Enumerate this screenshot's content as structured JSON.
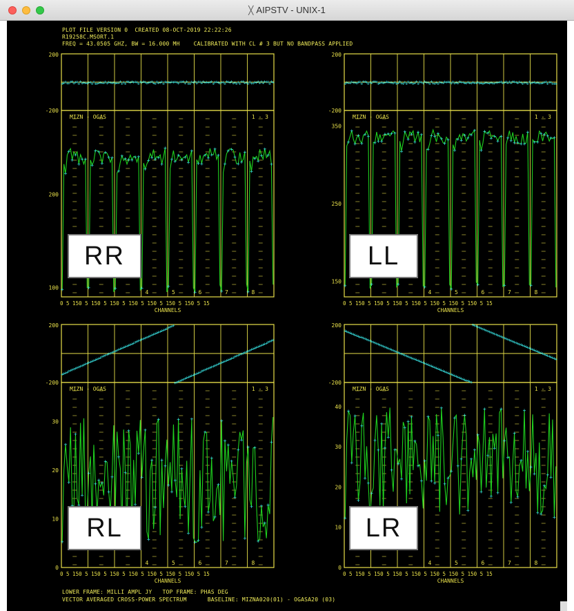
{
  "window": {
    "title": "AIPSTV - UNIX-1"
  },
  "header": {
    "line1": "PLOT FILE VERSION 0  CREATED 08-OCT-2019 22:22:26",
    "line2": "R19258C.MSORT.1",
    "line3": "FREQ = 43.0505 GHZ, BW = 16.000 MH    CALIBRATED WITH CL # 3 BUT NO BANDPASS APPLIED"
  },
  "footer": {
    "line1": "LOWER FRAME: MILLI AMPL JY   TOP FRAME: PHAS DEG",
    "line2": "VECTOR AVERAGED CROSS-POWER SPECTRUM      BASELINE: MIZNA020(01) - OGASA20 (03)"
  },
  "panels": [
    {
      "id": "RR",
      "label": "RR",
      "baseline_text": "MIZN - OGAS",
      "index_text": "1 - 3",
      "phase_ticks": [
        "200",
        "-200"
      ],
      "amp_ticks": [
        "200",
        "100"
      ],
      "amp_min": 90,
      "amp_max": 290
    },
    {
      "id": "LL",
      "label": "LL",
      "baseline_text": "MIZN - OGAS",
      "index_text": "1 - 3",
      "phase_ticks": [
        "200",
        "-200"
      ],
      "amp_ticks": [
        "350",
        "250",
        "150"
      ],
      "amp_min": 130,
      "amp_max": 370
    },
    {
      "id": "RL",
      "label": "RL",
      "baseline_text": "MIZN - OGAS",
      "index_text": "1 - 3",
      "phase_ticks": [
        "200",
        "-200"
      ],
      "amp_ticks": [
        "30",
        "20",
        "10",
        "0"
      ],
      "amp_min": 0,
      "amp_max": 38
    },
    {
      "id": "LR",
      "label": "LR",
      "baseline_text": "MIZN - OGAS",
      "index_text": "1 - 3",
      "phase_ticks": [
        "200",
        "-200"
      ],
      "amp_ticks": [
        "40",
        "30",
        "20",
        "10",
        "0"
      ],
      "amp_min": 0,
      "amp_max": 46
    }
  ],
  "if_numbers": [
    "4",
    "5",
    "6",
    "7",
    "8"
  ],
  "x_ticks": "0 5  150 5  150 5  150 5  150 5  150 5  150 5  150 5  15",
  "x_title": "CHANNELS",
  "colors": {
    "frame": "#e8e04a",
    "model": "#1fd11f",
    "points": "#39e6e6",
    "background": "#000000"
  }
}
